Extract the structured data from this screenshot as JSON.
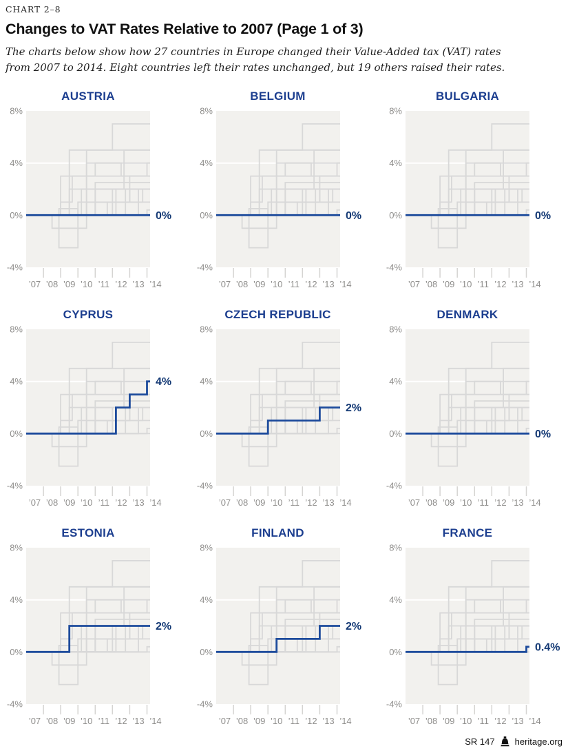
{
  "header": {
    "kicker": "CHART 2–8",
    "title": "Changes to VAT Rates Relative to 2007 (Page 1 of 3)",
    "subtitle_lines": [
      "The charts below show how 27 countries in Europe changed their Value-Added tax (VAT) rates",
      "from 2007 to 2014. Eight countries left their rates unchanged, but 19 others raised their rates."
    ]
  },
  "footer": {
    "report": "SR 147",
    "site": "heritage.org"
  },
  "colors": {
    "title_navy": "#1c3e8f",
    "line_blue": "#1d4b9c",
    "value_navy": "#153a75",
    "background_line_gray": "#d8d8d8",
    "plot_bg": "#f2f1ee",
    "gridline_white": "#ffffff",
    "tick_gray": "#d5d4d2",
    "axis_text_gray": "#8f8e8c"
  },
  "chart_data": {
    "type": "line",
    "step_style": true,
    "units": "percentage-point change in VAT rate vs 2007",
    "x_range_years": [
      2007,
      2014
    ],
    "x_tick_labels": [
      "’07",
      "’08",
      "’09",
      "’10",
      "’11",
      "’12",
      "’13",
      "’14"
    ],
    "ylim": [
      -4,
      8
    ],
    "y_ticks": [
      {
        "v": 8,
        "label": "8%"
      },
      {
        "v": 4,
        "label": "4%"
      },
      {
        "v": 0,
        "label": "0%"
      },
      {
        "v": -4,
        "label": "-4%"
      }
    ],
    "y_gridlines": [
      4,
      0
    ],
    "panels": [
      {
        "title": "AUSTRIA",
        "end_label": "0%",
        "end_value": 0,
        "steps": [
          [
            0,
            0
          ]
        ]
      },
      {
        "title": "BELGIUM",
        "end_label": "0%",
        "end_value": 0,
        "steps": [
          [
            0,
            0
          ]
        ]
      },
      {
        "title": "BULGARIA",
        "end_label": "0%",
        "end_value": 0,
        "steps": [
          [
            0,
            0
          ]
        ]
      },
      {
        "title": "CYPRUS",
        "end_label": "4%",
        "end_value": 4,
        "steps": [
          [
            0,
            0
          ],
          [
            5.2,
            2
          ],
          [
            6,
            3
          ],
          [
            7,
            4
          ]
        ]
      },
      {
        "title": "CZECH REPUBLIC",
        "end_label": "2%",
        "end_value": 2,
        "steps": [
          [
            0,
            0
          ],
          [
            3,
            1
          ],
          [
            6,
            2
          ]
        ]
      },
      {
        "title": "DENMARK",
        "end_label": "0%",
        "end_value": 0,
        "steps": [
          [
            0,
            0
          ]
        ]
      },
      {
        "title": "ESTONIA",
        "end_label": "2%",
        "end_value": 2,
        "steps": [
          [
            0,
            0
          ],
          [
            2.5,
            2
          ]
        ]
      },
      {
        "title": "FINLAND",
        "end_label": "2%",
        "end_value": 2,
        "steps": [
          [
            0,
            0
          ],
          [
            3.5,
            1
          ],
          [
            6,
            2
          ]
        ]
      },
      {
        "title": "FRANCE",
        "end_label": "0.4%",
        "end_value": 0.4,
        "steps": [
          [
            0,
            0
          ],
          [
            7,
            0.4
          ]
        ]
      }
    ],
    "background_series": [
      {
        "steps": [
          [
            0,
            0
          ]
        ]
      },
      {
        "steps": [
          [
            0,
            0
          ],
          [
            5.2,
            2
          ],
          [
            6,
            3
          ],
          [
            7,
            4
          ]
        ]
      },
      {
        "steps": [
          [
            0,
            0
          ],
          [
            3,
            1
          ],
          [
            6,
            2
          ]
        ]
      },
      {
        "steps": [
          [
            0,
            0
          ],
          [
            2.5,
            2
          ]
        ]
      },
      {
        "steps": [
          [
            0,
            0
          ],
          [
            3.5,
            1
          ],
          [
            6,
            2
          ]
        ]
      },
      {
        "steps": [
          [
            0,
            0
          ],
          [
            7,
            0.4
          ]
        ]
      },
      {
        "steps": [
          [
            0,
            0
          ],
          [
            3.2,
            2
          ],
          [
            3.5,
            4
          ]
        ]
      },
      {
        "steps": [
          [
            0,
            0
          ],
          [
            2.5,
            5
          ],
          [
            5,
            7
          ]
        ]
      },
      {
        "steps": [
          [
            0,
            0
          ],
          [
            1.9,
            0.5
          ],
          [
            3,
            0
          ],
          [
            5,
            2
          ]
        ]
      },
      {
        "steps": [
          [
            0,
            0
          ],
          [
            4.7,
            1
          ],
          [
            6.75,
            2
          ]
        ]
      },
      {
        "steps": [
          [
            0,
            0
          ],
          [
            2,
            3
          ],
          [
            4,
            4
          ],
          [
            5.5,
            3
          ]
        ]
      },
      {
        "steps": [
          [
            0,
            0
          ],
          [
            2,
            1
          ],
          [
            2.67,
            3
          ]
        ]
      },
      {
        "steps": [
          [
            0,
            0
          ],
          [
            5.75,
            2
          ]
        ]
      },
      {
        "steps": [
          [
            0,
            0
          ],
          [
            4,
            1
          ]
        ]
      },
      {
        "steps": [
          [
            0,
            0
          ],
          [
            1.5,
            -1
          ],
          [
            3.5,
            0
          ],
          [
            4,
            2
          ]
        ]
      },
      {
        "steps": [
          [
            0,
            0
          ],
          [
            3.5,
            5
          ]
        ]
      },
      {
        "steps": [
          [
            0,
            0
          ],
          [
            6.5,
            2
          ]
        ]
      },
      {
        "steps": [
          [
            0,
            0
          ],
          [
            3.5,
            2
          ],
          [
            5.67,
            5
          ]
        ]
      },
      {
        "steps": [
          [
            0,
            0
          ],
          [
            1.9,
            -2.5
          ],
          [
            3,
            0
          ],
          [
            4,
            2.5
          ]
        ]
      }
    ]
  }
}
